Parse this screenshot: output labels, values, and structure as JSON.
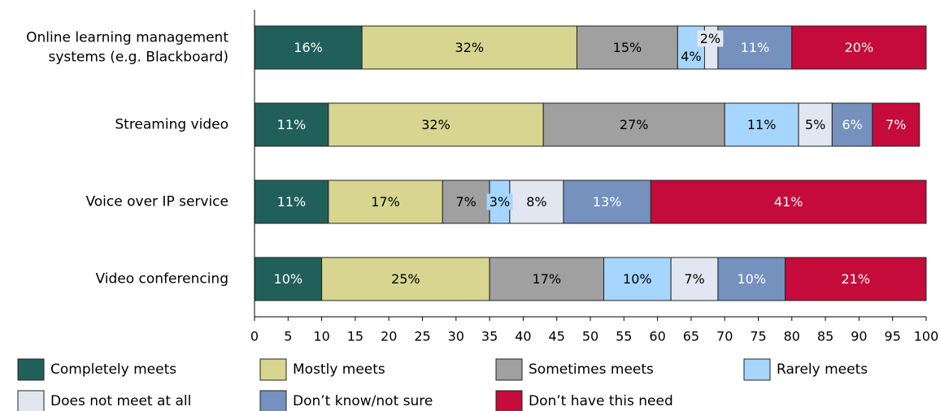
{
  "chart_data": {
    "type": "bar",
    "orientation": "horizontal",
    "stacked": true,
    "title": "",
    "xlabel": "",
    "ylabel": "",
    "xlim": [
      0,
      100
    ],
    "xticks": [
      0,
      5,
      10,
      15,
      20,
      25,
      30,
      35,
      40,
      45,
      50,
      55,
      60,
      65,
      70,
      75,
      80,
      85,
      90,
      95,
      100
    ],
    "grid": false,
    "legend_position": "bottom",
    "categories": [
      [
        "Online learning management",
        "systems (e.g. Blackboard)"
      ],
      [
        "Streaming video"
      ],
      [
        "Voice over IP service"
      ],
      [
        "Video conferencing"
      ]
    ],
    "series": [
      {
        "name": "Completely meets",
        "color": "#215f5a",
        "label_color": "#ffffff",
        "values": [
          16,
          11,
          11,
          10
        ],
        "labels": [
          "16%",
          "11%",
          "11%",
          "10%"
        ]
      },
      {
        "name": "Mostly meets",
        "color": "#d7d590",
        "label_color": "#000000",
        "values": [
          32,
          32,
          17,
          25
        ],
        "labels": [
          "32%",
          "32%",
          "17%",
          "25%"
        ]
      },
      {
        "name": "Sometimes meets",
        "color": "#a0a0a0",
        "label_color": "#000000",
        "values": [
          15,
          27,
          7,
          17
        ],
        "labels": [
          "15%",
          "27%",
          "7%",
          "17%"
        ]
      },
      {
        "name": "Rarely meets",
        "color": "#a6d5fd",
        "label_color": "#000000",
        "values": [
          4,
          11,
          3,
          10
        ],
        "labels": [
          "4%",
          "11%",
          "3%",
          "10%"
        ]
      },
      {
        "name": "Does not meet at all",
        "color": "#e1e6f0",
        "label_color": "#000000",
        "values": [
          2,
          5,
          8,
          7
        ],
        "labels": [
          "2%",
          "5%",
          "8%",
          "7%"
        ]
      },
      {
        "name": "Don’t know/not sure",
        "color": "#7591bd",
        "label_color": "#ffffff",
        "values": [
          11,
          6,
          13,
          10
        ],
        "labels": [
          "11%",
          "6%",
          "13%",
          "10%"
        ]
      },
      {
        "name": "Don’t have this need",
        "color": "#c50b3b",
        "label_color": "#ffffff",
        "values": [
          20,
          7,
          41,
          21
        ],
        "labels": [
          "20%",
          "7%",
          "41%",
          "21%"
        ]
      }
    ]
  }
}
